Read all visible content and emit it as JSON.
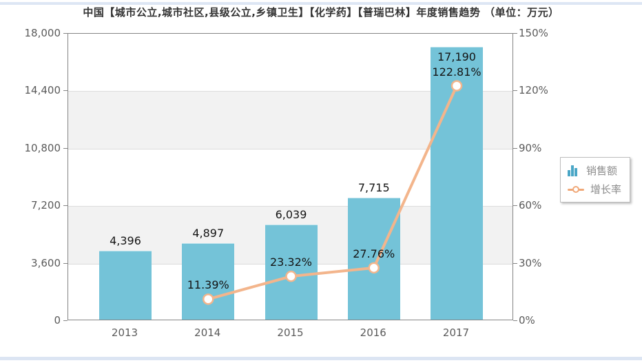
{
  "chart_data": {
    "type": "combo-bar-line",
    "title": "中国【城市公立,城市社区,县级公立,乡镇卫生】【化学药】【普瑞巴林】年度销售趋势 （单位：万元）",
    "categories": [
      "2013",
      "2014",
      "2015",
      "2016",
      "2017"
    ],
    "series": [
      {
        "name": "销售额",
        "type": "bar",
        "axis": "left",
        "color": "#74c3d8",
        "values": [
          4396,
          4897,
          6039,
          7715,
          17190
        ],
        "labels": [
          "4,396",
          "4,897",
          "6,039",
          "7,715",
          "17,190"
        ]
      },
      {
        "name": "增长率",
        "type": "line",
        "axis": "right",
        "color": "#f3b58c",
        "marker_fill": "#ffffff",
        "values": [
          null,
          11.39,
          23.32,
          27.76,
          122.81
        ],
        "labels": [
          null,
          "11.39%",
          "23.32%",
          "27.76%",
          "122.81%"
        ]
      }
    ],
    "left_axis": {
      "min": 0,
      "max": 18000,
      "tick_labels": [
        "18,000",
        "14,400",
        "10,800",
        "7,200",
        "3,600",
        "0"
      ]
    },
    "right_axis": {
      "min": 0,
      "max": 150,
      "tick_labels": [
        "150%",
        "120%",
        "90%",
        "60%",
        "30%",
        "0%"
      ]
    },
    "legend": {
      "position": "right",
      "items": [
        {
          "label": "销售额",
          "icon": "bar-series-icon",
          "color": "#4aa6c6"
        },
        {
          "label": "增长率",
          "icon": "line-series-icon",
          "color": "#f0a878"
        }
      ]
    },
    "grid": true,
    "band_fill_color": "#f2f2f2",
    "ylim_left": [
      0,
      18000
    ],
    "ylim_right": [
      0,
      150
    ]
  }
}
